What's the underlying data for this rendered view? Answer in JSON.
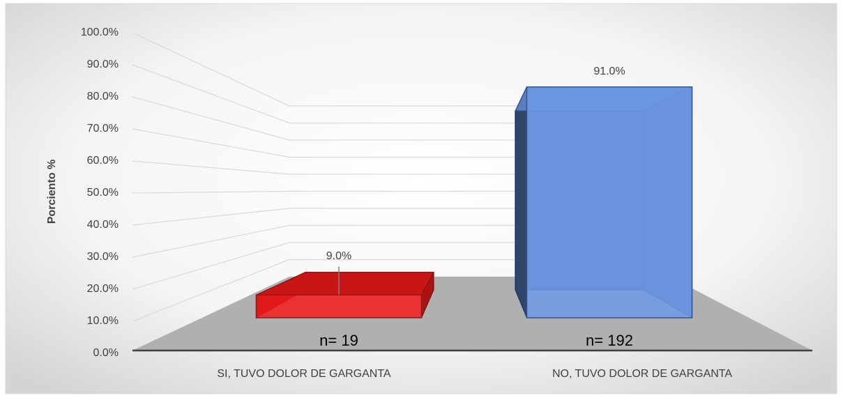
{
  "chart_data": {
    "type": "bar3d",
    "y_label": "Porciento %",
    "categories": [
      "SI, TUVO DOLOR DE GARGANTA",
      "NO, TUVO DOLOR DE GARGANTA"
    ],
    "values": [
      9.0,
      91.0
    ],
    "value_labels": [
      "9.0%",
      "91.0%"
    ],
    "annotations": [
      "n= 19",
      "n= 192"
    ],
    "colors": [
      "#f51c1c",
      "#6e9ae6"
    ],
    "ylim": [
      0,
      100
    ],
    "yticks": [
      {
        "value": 0,
        "label": "0.0%"
      },
      {
        "value": 10,
        "label": "10.0%"
      },
      {
        "value": 20,
        "label": "20.0%"
      },
      {
        "value": 30,
        "label": "30.0%"
      },
      {
        "value": 40,
        "label": "40.0%"
      },
      {
        "value": 50,
        "label": "50.0%"
      },
      {
        "value": 60,
        "label": "60.0%"
      },
      {
        "value": 70,
        "label": "70.0%"
      },
      {
        "value": 80,
        "label": "80.0%"
      },
      {
        "value": 90,
        "label": "90.0%"
      },
      {
        "value": 100,
        "label": "100.0%"
      }
    ],
    "grid": true
  }
}
